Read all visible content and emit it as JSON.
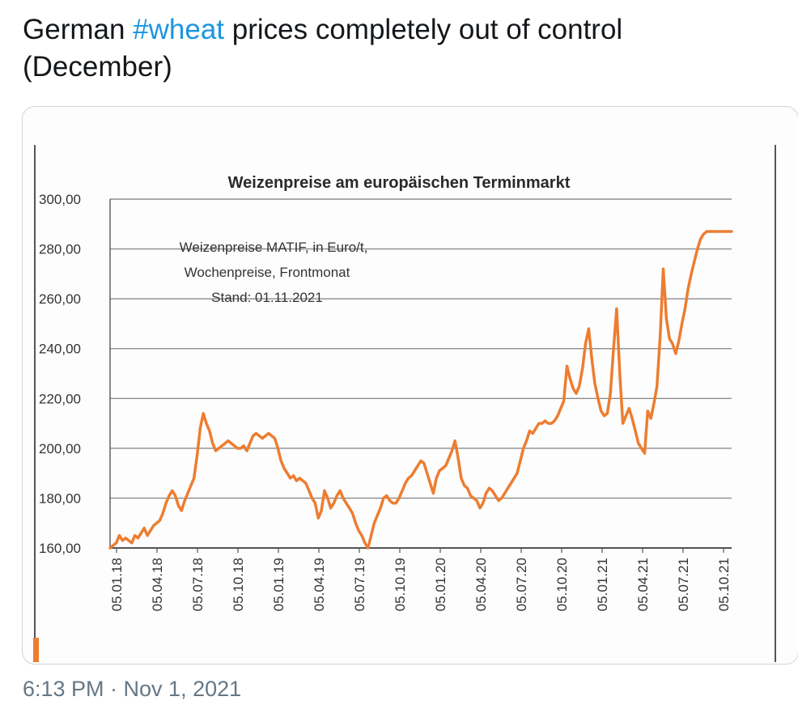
{
  "tweet": {
    "text_before": "German ",
    "hashtag": "#wheat",
    "text_after": " prices completely out of control (December)",
    "timestamp": "6:13 PM · Nov 1, 2021"
  },
  "colors": {
    "hashtag": "#1b95e0",
    "series": "#ed7d31",
    "grid": "#8c8c8c",
    "text": "#14171a",
    "meta": "#657786"
  },
  "chart_data": {
    "type": "line",
    "title": "Weizenpreise am europäischen Terminmarkt",
    "annotation": [
      "Weizenpreise MATIF, in Euro/t,",
      "Wochenpreise, Frontmonat",
      "Stand: 01.11.2021"
    ],
    "xlabel": "",
    "ylabel": "",
    "ylim": [
      160,
      300
    ],
    "yticks": [
      160,
      180,
      200,
      220,
      240,
      260,
      280,
      300
    ],
    "ytick_labels": [
      "160,00",
      "180,00",
      "200,00",
      "220,00",
      "240,00",
      "260,00",
      "280,00",
      "300,00"
    ],
    "x_start": "05.01.18",
    "x_end": "01.11.21",
    "xtick_labels": [
      "05.01.18",
      "05.04.18",
      "05.07.18",
      "05.10.18",
      "05.01.19",
      "05.04.19",
      "05.07.19",
      "05.10.19",
      "05.01.20",
      "05.04.20",
      "05.07.20",
      "05.10.20",
      "05.01.21",
      "05.04.21",
      "05.07.21",
      "05.10.21"
    ],
    "grid": true,
    "series": [
      {
        "name": "Weizenpreise MATIF",
        "x": [
          0,
          1,
          2,
          3,
          4,
          5,
          6,
          7,
          8,
          9,
          10,
          11,
          12,
          13,
          14,
          15,
          16,
          17,
          18,
          19,
          20,
          21,
          22,
          23,
          24,
          25,
          26,
          27,
          28,
          29,
          30,
          31,
          32,
          33,
          34,
          35,
          36,
          37,
          38,
          39,
          40,
          41,
          42,
          43,
          44,
          45,
          46,
          47,
          48,
          49,
          50,
          51,
          52,
          53,
          54,
          55,
          56,
          57,
          58,
          59,
          60,
          61,
          62,
          63,
          64,
          65,
          66,
          67,
          68,
          69,
          70,
          71,
          72,
          73,
          74,
          75,
          76,
          77,
          78,
          79,
          80,
          81,
          82,
          83,
          84,
          85,
          86,
          87,
          88,
          89,
          90,
          91,
          92,
          93,
          94,
          95,
          96,
          97,
          98,
          99,
          100,
          101,
          102,
          103,
          104,
          105,
          106,
          107,
          108,
          109,
          110,
          111,
          112,
          113,
          114,
          115,
          116,
          117,
          118,
          119,
          120,
          121,
          122,
          123,
          124,
          125,
          126,
          127,
          128,
          129,
          130,
          131,
          132,
          133,
          134,
          135,
          136,
          137,
          138,
          139,
          140,
          141,
          142,
          143,
          144,
          145,
          146,
          147,
          148,
          149,
          150,
          151,
          152,
          153,
          154,
          155,
          156,
          157,
          158,
          159,
          160,
          161,
          162,
          163,
          164,
          165,
          166,
          167,
          168,
          169,
          170,
          171,
          172,
          173,
          174,
          175,
          176,
          177,
          178,
          179,
          180,
          181,
          182,
          183,
          184,
          185,
          186,
          187,
          188,
          189,
          190,
          191,
          192,
          193,
          194,
          195,
          196,
          197,
          198,
          199,
          200
        ],
        "values": [
          160,
          161,
          162,
          165,
          163,
          164,
          163,
          162,
          165,
          164,
          166,
          168,
          165,
          167,
          169,
          170,
          171,
          174,
          178,
          181,
          183,
          181,
          177,
          175,
          179,
          182,
          185,
          188,
          197,
          208,
          214,
          210,
          207,
          202,
          199,
          200,
          201,
          202,
          203,
          202,
          201,
          200,
          200,
          201,
          199,
          202,
          205,
          206,
          205,
          204,
          205,
          206,
          205,
          204,
          200,
          195,
          192,
          190,
          188,
          189,
          187,
          188,
          187,
          186,
          183,
          180,
          178,
          172,
          175,
          183,
          180,
          176,
          178,
          181,
          183,
          180,
          178,
          176,
          174,
          170,
          167,
          165,
          162,
          160,
          165,
          170,
          173,
          176,
          180,
          181,
          179,
          178,
          178,
          180,
          183,
          186,
          188,
          189,
          191,
          193,
          195,
          194,
          190,
          186,
          182,
          188,
          191,
          192,
          193,
          196,
          199,
          203,
          196,
          188,
          185,
          184,
          181,
          180,
          179,
          176,
          178,
          182,
          184,
          183,
          181,
          179,
          180,
          182,
          184,
          186,
          188,
          190,
          195,
          200,
          203,
          207,
          206,
          208,
          210,
          210,
          211,
          210,
          210,
          211,
          213,
          216,
          219,
          233,
          228,
          224,
          222,
          225,
          232,
          242,
          248,
          236,
          226,
          220,
          215,
          213,
          214,
          222,
          240,
          256,
          230,
          210,
          213,
          216,
          212,
          207,
          202,
          200,
          198,
          215,
          212,
          218,
          225,
          245,
          272,
          252,
          244,
          242,
          238,
          243,
          250,
          256,
          264,
          270,
          275,
          280,
          284,
          286,
          287,
          287,
          287,
          287,
          287,
          287,
          287,
          287,
          287
        ]
      }
    ]
  }
}
